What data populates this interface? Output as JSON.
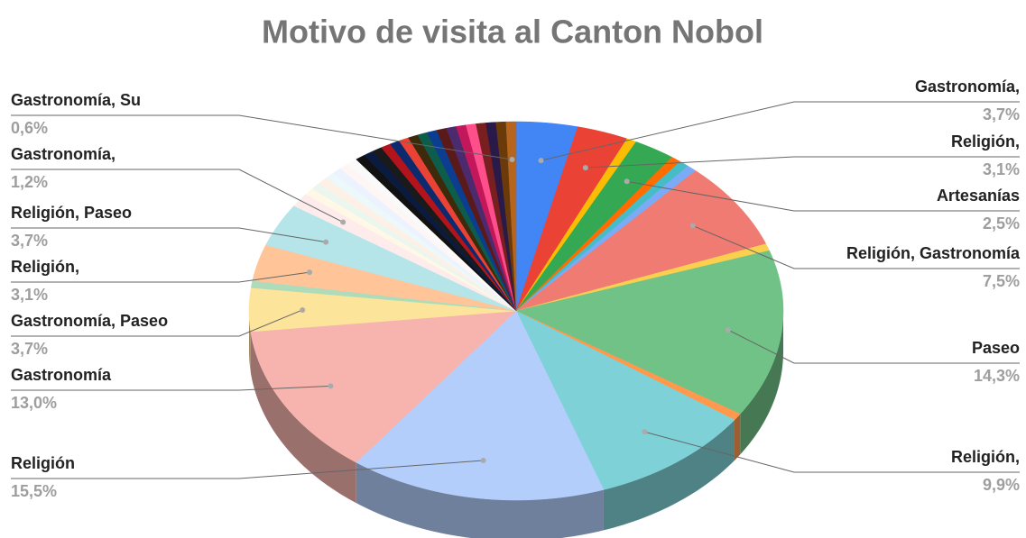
{
  "chart_data": {
    "type": "pie3d",
    "title": "Motivo de visita al Canton Nobol",
    "categories": [
      "Gastronomía,",
      "Religión,",
      null,
      "Artesanías",
      null,
      null,
      null,
      "Religión, Gastronomía",
      null,
      "Paseo",
      null,
      "Religión,",
      "Religión",
      "Gastronomía",
      "Gastronomía, Paseo",
      null,
      "Religión,",
      "Religión, Paseo",
      "Gastronomía,",
      null,
      null,
      null,
      null,
      null,
      null,
      null,
      null,
      null,
      null,
      null,
      null,
      null,
      null,
      null,
      null,
      null,
      null,
      null,
      null,
      null,
      null,
      null,
      "Gastronomía, Su"
    ],
    "values": [
      3.7,
      3.1,
      0.6,
      2.5,
      0.6,
      0.6,
      0.6,
      7.5,
      0.6,
      14.3,
      0.6,
      9.9,
      15.5,
      13.0,
      3.7,
      0.6,
      3.1,
      3.7,
      1.2,
      0.6,
      0.6,
      0.6,
      0.6,
      0.6,
      0.6,
      0.6,
      0.6,
      0.6,
      0.6,
      0.6,
      0.6,
      0.6,
      0.6,
      0.6,
      0.6,
      0.6,
      0.6,
      0.6,
      0.6,
      0.6,
      0.6,
      0.6,
      0.6
    ],
    "value_labels": [
      "3,7%",
      "3,1%",
      null,
      "2,5%",
      null,
      null,
      null,
      "7,5%",
      null,
      "14,3%",
      null,
      "9,9%",
      "15,5%",
      "13,0%",
      "3,7%",
      null,
      "3,1%",
      "3,7%",
      "1,2%",
      null,
      null,
      null,
      null,
      null,
      null,
      null,
      null,
      null,
      null,
      null,
      null,
      null,
      null,
      null,
      null,
      null,
      null,
      null,
      null,
      null,
      null,
      null,
      "0,6%"
    ],
    "colors": [
      "#4285f4",
      "#ea4335",
      "#fbbc04",
      "#34a853",
      "#ff6d01",
      "#46bdc6",
      "#7baaf7",
      "#f07b72",
      "#fcd04f",
      "#71c287",
      "#ff994d",
      "#7ed1d7",
      "#b3cefb",
      "#f7b4ae",
      "#fde49b",
      "#aedcba",
      "#ffc599",
      "#b5e5e8",
      "#fdeceb",
      "#fff8e6",
      "#ebf6ee",
      "#fff0e5",
      "#ecf8f9",
      "#ecf3fe",
      "#fef6f5",
      "#fafafa",
      "#111111",
      "#0b1a3f",
      "#1a1a1a",
      "#b3141b",
      "#0d2a6e",
      "#ea4335",
      "#3d2a0a",
      "#0e5c4a",
      "#0b3d91",
      "#5a1a1a",
      "#4b2a6e",
      "#c2185b",
      "#ff4f8b",
      "#7a1f1f",
      "#2a1a4a",
      "#6b3a0a",
      "#b5651d"
    ]
  }
}
